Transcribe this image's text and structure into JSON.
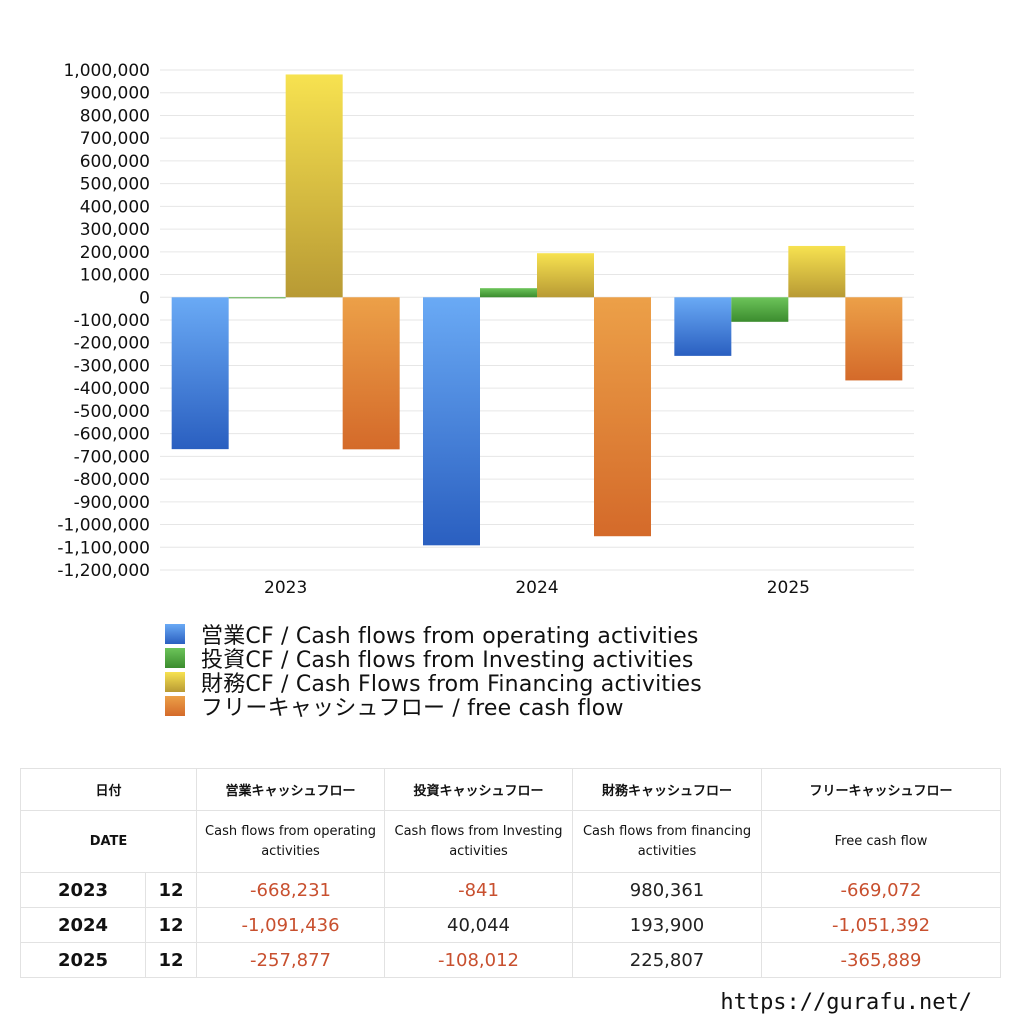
{
  "chart_data": {
    "type": "bar",
    "categories": [
      "2023",
      "2024",
      "2025"
    ],
    "ylim": [
      -1200000,
      1000000
    ],
    "ytick_step": 100000,
    "grid": true,
    "legend_position": "bottom",
    "series": [
      {
        "name": "営業CF / Cash flows from operating activities",
        "values": [
          -668231,
          -1091436,
          -257877
        ],
        "color_top": "#6aaaf5",
        "color_bottom": "#2a5fc0"
      },
      {
        "name": "投資CF / Cash flows from Investing activities",
        "values": [
          -841,
          40044,
          -108012
        ],
        "color_top": "#6cc45a",
        "color_bottom": "#3b8c2e"
      },
      {
        "name": "財務CF / Cash Flows from Financing activities",
        "values": [
          980361,
          193900,
          225807
        ],
        "color_top": "#f7e250",
        "color_bottom": "#b89a34"
      },
      {
        "name": "フリーキャッシュフロー / free cash flow",
        "values": [
          -669072,
          -1051392,
          -365889
        ],
        "color_top": "#eca048",
        "color_bottom": "#d46a2a"
      }
    ]
  },
  "table": {
    "headers_jp": [
      "日付",
      "営業キャッシュフロー",
      "投資キャッシュフロー",
      "財務キャッシュフロー",
      "フリーキャッシュフロー"
    ],
    "headers_en": [
      "DATE",
      "Cash flows from operating activities",
      "Cash flows from Investing activities",
      "Cash flows from financing activities",
      "Free cash flow"
    ],
    "rows": [
      {
        "year": "2023",
        "month": "12",
        "values": [
          "-668,231",
          "-841",
          "980,361",
          "-669,072"
        ]
      },
      {
        "year": "2024",
        "month": "12",
        "values": [
          "-1,091,436",
          "40,044",
          "193,900",
          "-1,051,392"
        ]
      },
      {
        "year": "2025",
        "month": "12",
        "values": [
          "-257,877",
          "-108,012",
          "225,807",
          "-365,889"
        ]
      }
    ]
  },
  "watermark": "https://gurafu.net/"
}
